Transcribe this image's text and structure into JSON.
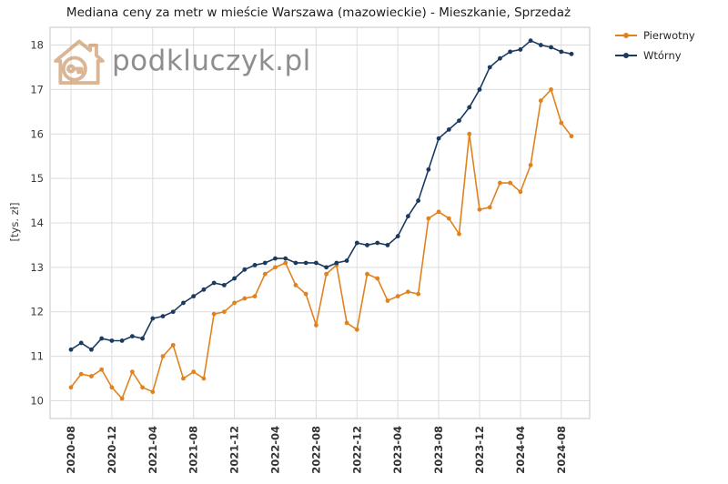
{
  "watermark": {
    "text": "podkluczyk.pl"
  },
  "chart_data": {
    "type": "line",
    "title": "Mediana ceny za metr w mieście Warszawa (mazowieckie) - Mieszkanie, Sprzedaż",
    "xlabel": "",
    "ylabel": "[tys. zł]",
    "grid": true,
    "legend_position": "upper right outside",
    "ylim": [
      9.6,
      18.4
    ],
    "yticks": [
      10,
      11,
      12,
      13,
      14,
      15,
      16,
      17,
      18
    ],
    "x": [
      "2020-08",
      "2020-09",
      "2020-10",
      "2020-11",
      "2020-12",
      "2021-01",
      "2021-02",
      "2021-03",
      "2021-04",
      "2021-05",
      "2021-06",
      "2021-07",
      "2021-08",
      "2021-09",
      "2021-10",
      "2021-11",
      "2021-12",
      "2022-01",
      "2022-02",
      "2022-03",
      "2022-04",
      "2022-05",
      "2022-06",
      "2022-07",
      "2022-08",
      "2022-09",
      "2022-10",
      "2022-11",
      "2022-12",
      "2023-01",
      "2023-02",
      "2023-03",
      "2023-04",
      "2023-05",
      "2023-06",
      "2023-07",
      "2023-08",
      "2023-09",
      "2023-10",
      "2023-11",
      "2023-12",
      "2024-01",
      "2024-02",
      "2024-03",
      "2024-04",
      "2024-05",
      "2024-06",
      "2024-07",
      "2024-08",
      "2024-09"
    ],
    "x_tick_labels": [
      "2020-08",
      "2020-12",
      "2021-04",
      "2021-08",
      "2021-12",
      "2022-04",
      "2022-08",
      "2022-12",
      "2023-04",
      "2023-08",
      "2023-12",
      "2024-04",
      "2024-08"
    ],
    "series": [
      {
        "name": "Pierwotny",
        "color": "#e0821e",
        "values": [
          10.3,
          10.6,
          10.55,
          10.7,
          10.3,
          10.05,
          10.65,
          10.3,
          10.2,
          11.0,
          11.25,
          10.5,
          10.65,
          10.5,
          11.95,
          12.0,
          12.2,
          12.3,
          12.35,
          12.85,
          13.0,
          13.1,
          12.6,
          12.4,
          11.7,
          12.85,
          13.05,
          11.75,
          11.6,
          12.85,
          12.75,
          12.25,
          12.35,
          12.45,
          12.4,
          14.1,
          14.25,
          14.1,
          13.75,
          16.0,
          14.3,
          14.35,
          14.9,
          14.9,
          14.7,
          15.3,
          16.75,
          17.0,
          16.25,
          15.95
        ]
      },
      {
        "name": "Wtórny",
        "color": "#1b3a5f",
        "values": [
          11.15,
          11.3,
          11.15,
          11.4,
          11.35,
          11.35,
          11.45,
          11.4,
          11.85,
          11.9,
          12.0,
          12.2,
          12.35,
          12.5,
          12.65,
          12.6,
          12.75,
          12.95,
          13.05,
          13.1,
          13.2,
          13.2,
          13.1,
          13.1,
          13.1,
          13.0,
          13.1,
          13.15,
          13.55,
          13.5,
          13.55,
          13.5,
          13.7,
          14.15,
          14.5,
          15.2,
          15.9,
          16.1,
          16.3,
          16.6,
          17.0,
          17.5,
          17.7,
          17.85,
          17.9,
          18.1,
          18.0,
          17.95,
          17.85,
          17.8
        ]
      }
    ]
  }
}
